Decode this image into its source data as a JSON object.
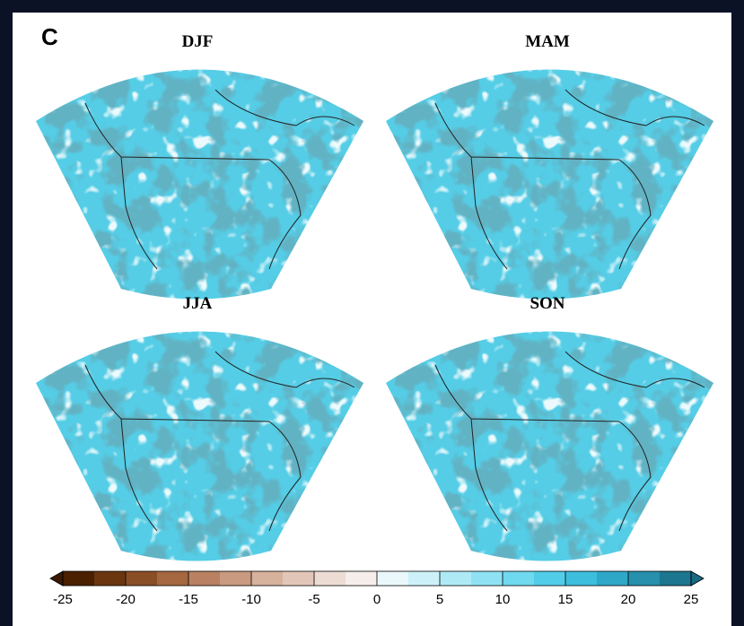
{
  "panel_label": "C",
  "panels": [
    {
      "title": "DJF"
    },
    {
      "title": "MAM"
    },
    {
      "title": "JJA"
    },
    {
      "title": "SON"
    }
  ],
  "colorbar": {
    "lim": [
      -25,
      25
    ],
    "ticks": [
      -25,
      -20,
      -15,
      -10,
      -5,
      0,
      5,
      10,
      15,
      20,
      25
    ],
    "colors": [
      "#4a2000",
      "#6b3510",
      "#8a4e26",
      "#a4673f",
      "#b98062",
      "#c99a80",
      "#d6b19c",
      "#e2c7b8",
      "#ecdcd3",
      "#f5eeea",
      "#eaf8fb",
      "#cdf1f8",
      "#aeeaf6",
      "#8fe2f3",
      "#6fd9ef",
      "#52cde9",
      "#3dbedd",
      "#2fa8c8",
      "#2690ad",
      "#1c7690"
    ]
  }
}
